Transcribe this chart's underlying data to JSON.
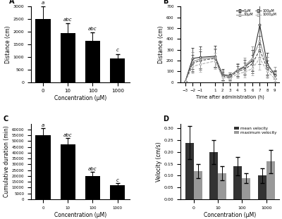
{
  "panel_A": {
    "categories": [
      "0",
      "10",
      "100",
      "1000"
    ],
    "values": [
      2500,
      1950,
      1650,
      950
    ],
    "errors": [
      500,
      380,
      320,
      170
    ],
    "labels": [
      "a",
      "abc",
      "abc",
      "c"
    ],
    "xlabel": "Concentration (μM)",
    "ylabel": "Distance (cm)",
    "ylim": [
      0,
      3000
    ],
    "yticks": [
      0,
      500,
      1000,
      1500,
      2000,
      2500,
      3000
    ]
  },
  "panel_B": {
    "time": [
      -3,
      -2,
      -1,
      1,
      2,
      3,
      4,
      5,
      6,
      7,
      8,
      9
    ],
    "series": {
      "0uM": [
        5,
        220,
        230,
        240,
        70,
        60,
        110,
        140,
        200,
        530,
        170,
        70
      ],
      "10uM": [
        5,
        190,
        215,
        230,
        65,
        55,
        115,
        150,
        220,
        380,
        145,
        90
      ],
      "100uM": [
        5,
        175,
        200,
        220,
        55,
        45,
        100,
        120,
        170,
        300,
        125,
        65
      ],
      "1000uM": [
        5,
        145,
        165,
        195,
        45,
        35,
        75,
        95,
        125,
        220,
        100,
        35
      ]
    },
    "errors": {
      "0uM": [
        5,
        100,
        100,
        100,
        50,
        30,
        55,
        65,
        100,
        180,
        100,
        40
      ],
      "10uM": [
        5,
        90,
        90,
        90,
        45,
        35,
        60,
        75,
        110,
        150,
        85,
        50
      ],
      "100uM": [
        5,
        80,
        85,
        85,
        40,
        30,
        50,
        60,
        85,
        130,
        75,
        35
      ],
      "1000uM": [
        5,
        65,
        70,
        75,
        35,
        25,
        40,
        50,
        65,
        105,
        60,
        25
      ]
    },
    "xlabel": "Time after administration (h)",
    "ylabel": "Distance (cm)",
    "ylim": [
      0,
      700
    ],
    "yticks": [
      0,
      100,
      200,
      300,
      400,
      500,
      600,
      700
    ],
    "legend_labels": [
      "0μM",
      "10μM",
      "100μM",
      "1000μM"
    ],
    "linestyles": [
      "-",
      "-",
      "--",
      "--"
    ],
    "colors": [
      "#222222",
      "#888888",
      "#444444",
      "#aaaaaa"
    ]
  },
  "panel_C": {
    "categories": [
      "0",
      "10",
      "100",
      "1000"
    ],
    "values": [
      55000,
      47000,
      20000,
      12000
    ],
    "errors": [
      6000,
      5500,
      3500,
      1800
    ],
    "labels": [
      "a",
      "abc",
      "abc",
      "c"
    ],
    "xlabel": "Concentration (μM)",
    "ylabel": "Cumulative duration (min)",
    "ylim": [
      0,
      65000
    ],
    "yticks": [
      0,
      5000,
      10000,
      15000,
      20000,
      25000,
      30000,
      35000,
      40000,
      45000,
      50000,
      55000,
      60000
    ]
  },
  "panel_D": {
    "categories": [
      "0",
      "10",
      "100",
      "1000"
    ],
    "mean_velocity": [
      0.24,
      0.2,
      0.14,
      0.1
    ],
    "max_velocity": [
      0.12,
      0.11,
      0.09,
      0.16
    ],
    "mean_errors": [
      0.07,
      0.05,
      0.04,
      0.03
    ],
    "max_errors": [
      0.03,
      0.03,
      0.02,
      0.05
    ],
    "xlabel": "Concentration (μM)",
    "ylabel": "Velocity (cm/s)",
    "ylim": [
      0,
      0.32
    ],
    "yticks": [
      0.0,
      0.05,
      0.1,
      0.15,
      0.2,
      0.25,
      0.3
    ],
    "legend_labels": [
      "mean velocity",
      "maximum velocity"
    ],
    "colors": [
      "#333333",
      "#999999"
    ]
  }
}
